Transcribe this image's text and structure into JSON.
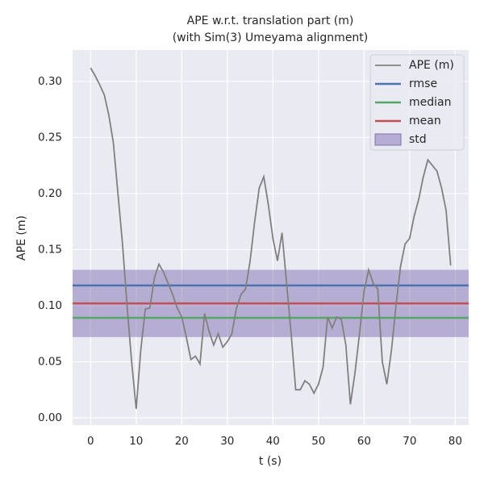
{
  "chart_data": {
    "type": "line",
    "title": "APE w.r.t. translation part (m)",
    "subtitle": "(with Sim(3) Umeyama alignment)",
    "x_label": "t (s)",
    "y_label": "APE (m)",
    "xlim": [
      -3.95,
      82.95
    ],
    "ylim": [
      -0.0065,
      0.328
    ],
    "xticks": [
      0,
      10,
      20,
      30,
      40,
      50,
      60,
      70,
      80
    ],
    "yticks": [
      {
        "value": 0,
        "label": "0.00"
      },
      {
        "value": 0.05,
        "label": "0.05"
      },
      {
        "value": 0.1,
        "label": "0.10"
      },
      {
        "value": 0.15,
        "label": "0.15"
      },
      {
        "value": 0.2,
        "label": "0.20"
      },
      {
        "value": 0.25,
        "label": "0.25"
      },
      {
        "value": 0.3,
        "label": "0.30"
      }
    ],
    "grid": true,
    "legend": "upper right",
    "series": [
      {
        "name": "APE (m)",
        "color": "#808080",
        "x": [
          0,
          1,
          2,
          3,
          4,
          5,
          6,
          7,
          8,
          9,
          10,
          11,
          12,
          13,
          14,
          15,
          16,
          17,
          18,
          19,
          20,
          21,
          22,
          23,
          24,
          25,
          26,
          27,
          28,
          29,
          30,
          31,
          32,
          33,
          34,
          35,
          36,
          37,
          38,
          39,
          40,
          41,
          42,
          43,
          44,
          45,
          46,
          47,
          48,
          49,
          50,
          51,
          52,
          53,
          54,
          55,
          56,
          57,
          58,
          59,
          60,
          61,
          62,
          63,
          64,
          65,
          66,
          67,
          68,
          69,
          70,
          71,
          72,
          73,
          74,
          75,
          76,
          77,
          78,
          79
        ],
        "values": [
          0.312,
          0.305,
          0.297,
          0.288,
          0.27,
          0.245,
          0.2,
          0.155,
          0.1,
          0.05,
          0.008,
          0.06,
          0.097,
          0.098,
          0.125,
          0.137,
          0.13,
          0.12,
          0.11,
          0.098,
          0.09,
          0.072,
          0.052,
          0.055,
          0.048,
          0.093,
          0.077,
          0.065,
          0.075,
          0.063,
          0.068,
          0.075,
          0.098,
          0.11,
          0.115,
          0.14,
          0.175,
          0.205,
          0.215,
          0.19,
          0.16,
          0.14,
          0.165,
          0.12,
          0.075,
          0.025,
          0.025,
          0.033,
          0.03,
          0.022,
          0.03,
          0.045,
          0.09,
          0.08,
          0.09,
          0.088,
          0.065,
          0.012,
          0.04,
          0.075,
          0.113,
          0.132,
          0.12,
          0.115,
          0.05,
          0.03,
          0.06,
          0.1,
          0.135,
          0.155,
          0.16,
          0.18,
          0.195,
          0.215,
          0.23,
          0.225,
          0.22,
          0.205,
          0.185,
          0.136
        ]
      }
    ],
    "stats": [
      {
        "name": "rmse",
        "color": "#4c72b0",
        "value": 0.118
      },
      {
        "name": "median",
        "color": "#55a868",
        "value": 0.0892
      },
      {
        "name": "mean",
        "color": "#c44e52",
        "value": 0.102
      }
    ],
    "band": {
      "name": "std",
      "color": "#8172b2",
      "values": [
        0.072,
        0.132
      ]
    }
  }
}
